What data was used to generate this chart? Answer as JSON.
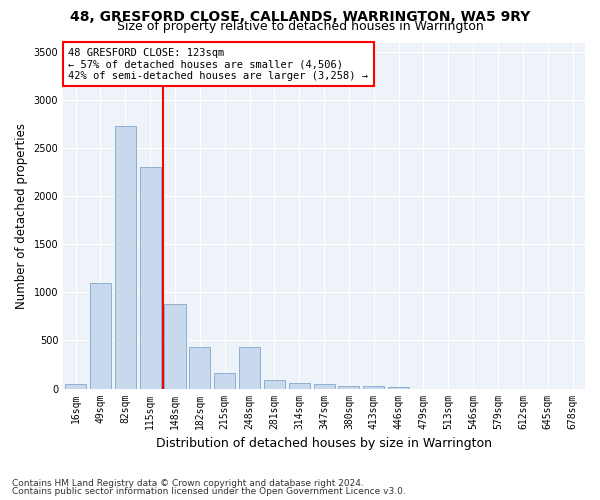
{
  "title1": "48, GRESFORD CLOSE, CALLANDS, WARRINGTON, WA5 9RY",
  "title2": "Size of property relative to detached houses in Warrington",
  "xlabel": "Distribution of detached houses by size in Warrington",
  "ylabel": "Number of detached properties",
  "categories": [
    "16sqm",
    "49sqm",
    "82sqm",
    "115sqm",
    "148sqm",
    "182sqm",
    "215sqm",
    "248sqm",
    "281sqm",
    "314sqm",
    "347sqm",
    "380sqm",
    "413sqm",
    "446sqm",
    "479sqm",
    "513sqm",
    "546sqm",
    "579sqm",
    "612sqm",
    "645sqm",
    "678sqm"
  ],
  "values": [
    50,
    1100,
    2730,
    2300,
    880,
    430,
    165,
    430,
    90,
    60,
    50,
    30,
    25,
    20,
    0,
    0,
    0,
    0,
    0,
    0,
    0
  ],
  "bar_color": "#c9d9ed",
  "bar_edge_color": "#7fa8cc",
  "vline_x": 3.5,
  "vline_color": "red",
  "annotation_text": "48 GRESFORD CLOSE: 123sqm\n← 57% of detached houses are smaller (4,506)\n42% of semi-detached houses are larger (3,258) →",
  "annotation_box_color": "white",
  "annotation_box_edge_color": "red",
  "ylim": [
    0,
    3600
  ],
  "yticks": [
    0,
    500,
    1000,
    1500,
    2000,
    2500,
    3000,
    3500
  ],
  "footer1": "Contains HM Land Registry data © Crown copyright and database right 2024.",
  "footer2": "Contains public sector information licensed under the Open Government Licence v3.0.",
  "bg_color": "#eef3f9",
  "grid_color": "#ffffff",
  "title1_fontsize": 10,
  "title2_fontsize": 9,
  "axis_label_fontsize": 8.5,
  "tick_fontsize": 7,
  "footer_fontsize": 6.5
}
